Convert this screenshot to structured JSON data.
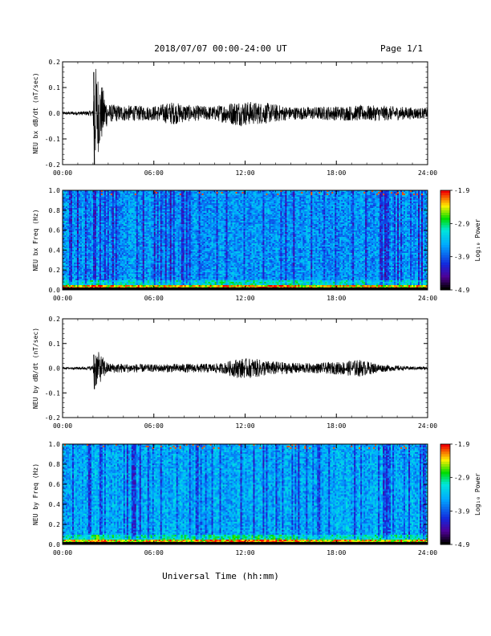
{
  "header": {
    "title": "2018/07/07  00:00-24:00 UT",
    "page": "Page 1/1"
  },
  "xaxis": {
    "label": "Universal Time (hh:mm)",
    "tick_labels": [
      "00:00",
      "06:00",
      "12:00",
      "18:00",
      "24:00"
    ]
  },
  "chart_data": [
    {
      "type": "line",
      "ylabel": "NEU bx dB/dt (nT/sec)",
      "xlim": [
        0,
        24
      ],
      "ylim": [
        -0.2,
        0.2
      ],
      "ytick_labels": [
        "0.2",
        "0.1",
        "0.0",
        "-0.1",
        "-0.2"
      ],
      "series": [
        {
          "x_hours": [
            0,
            1.5,
            2.0,
            2.05,
            2.1,
            3.0,
            4.5,
            6.0,
            7.2,
            8.5,
            10.0,
            11.5,
            12.5,
            13.5,
            15.0,
            16.5,
            18.0,
            19.5,
            21.0,
            22.5,
            24.0
          ],
          "y_env": [
            0.006,
            0.008,
            0.012,
            0.16,
            -0.2,
            0.035,
            0.03,
            0.028,
            0.045,
            0.03,
            0.028,
            0.05,
            0.045,
            0.04,
            0.025,
            0.025,
            0.028,
            0.03,
            0.03,
            0.025,
            0.02
          ]
        }
      ]
    },
    {
      "type": "heatmap",
      "ylabel": "NEU bx Freq (Hz)",
      "xlim": [
        0,
        24
      ],
      "ylim": [
        0.0,
        1.0
      ],
      "ytick_labels": [
        "1.0",
        "0.8",
        "0.6",
        "0.4",
        "0.2",
        "0.0"
      ],
      "colorbar": {
        "label": "Log₁₀ Power",
        "range": [
          -4.9,
          -1.9
        ],
        "tick_labels": [
          "-1.9",
          "-2.9",
          "-3.9",
          "-4.9"
        ]
      }
    },
    {
      "type": "line",
      "ylabel": "NEU by dB/dt (nT/sec)",
      "xlim": [
        0,
        24
      ],
      "ylim": [
        -0.2,
        0.2
      ],
      "ytick_labels": [
        "0.2",
        "0.1",
        "0.0",
        "-0.1",
        "-0.2"
      ],
      "series": [
        {
          "x_hours": [
            0,
            1.5,
            2.0,
            2.05,
            2.1,
            3.0,
            4.5,
            6.0,
            7.5,
            9.0,
            10.5,
            11.5,
            12.5,
            13.5,
            15.0,
            16.5,
            18.0,
            19.5,
            21.0,
            22.5,
            24.0
          ],
          "y_env": [
            0.004,
            0.006,
            0.01,
            0.055,
            -0.085,
            0.02,
            0.018,
            0.015,
            0.018,
            0.018,
            0.02,
            0.04,
            0.04,
            0.03,
            0.022,
            0.02,
            0.025,
            0.035,
            0.015,
            0.008,
            0.006
          ]
        }
      ]
    },
    {
      "type": "heatmap",
      "ylabel": "NEU by Freq (Hz)",
      "xlim": [
        0,
        24
      ],
      "ylim": [
        0.0,
        1.0
      ],
      "ytick_labels": [
        "1.0",
        "0.8",
        "0.6",
        "0.4",
        "0.2",
        "0.0"
      ],
      "colorbar": {
        "label": "Log₁₀ Power",
        "range": [
          -4.9,
          -1.9
        ],
        "tick_labels": [
          "-1.9",
          "-2.9",
          "-3.9",
          "-4.9"
        ]
      }
    }
  ]
}
